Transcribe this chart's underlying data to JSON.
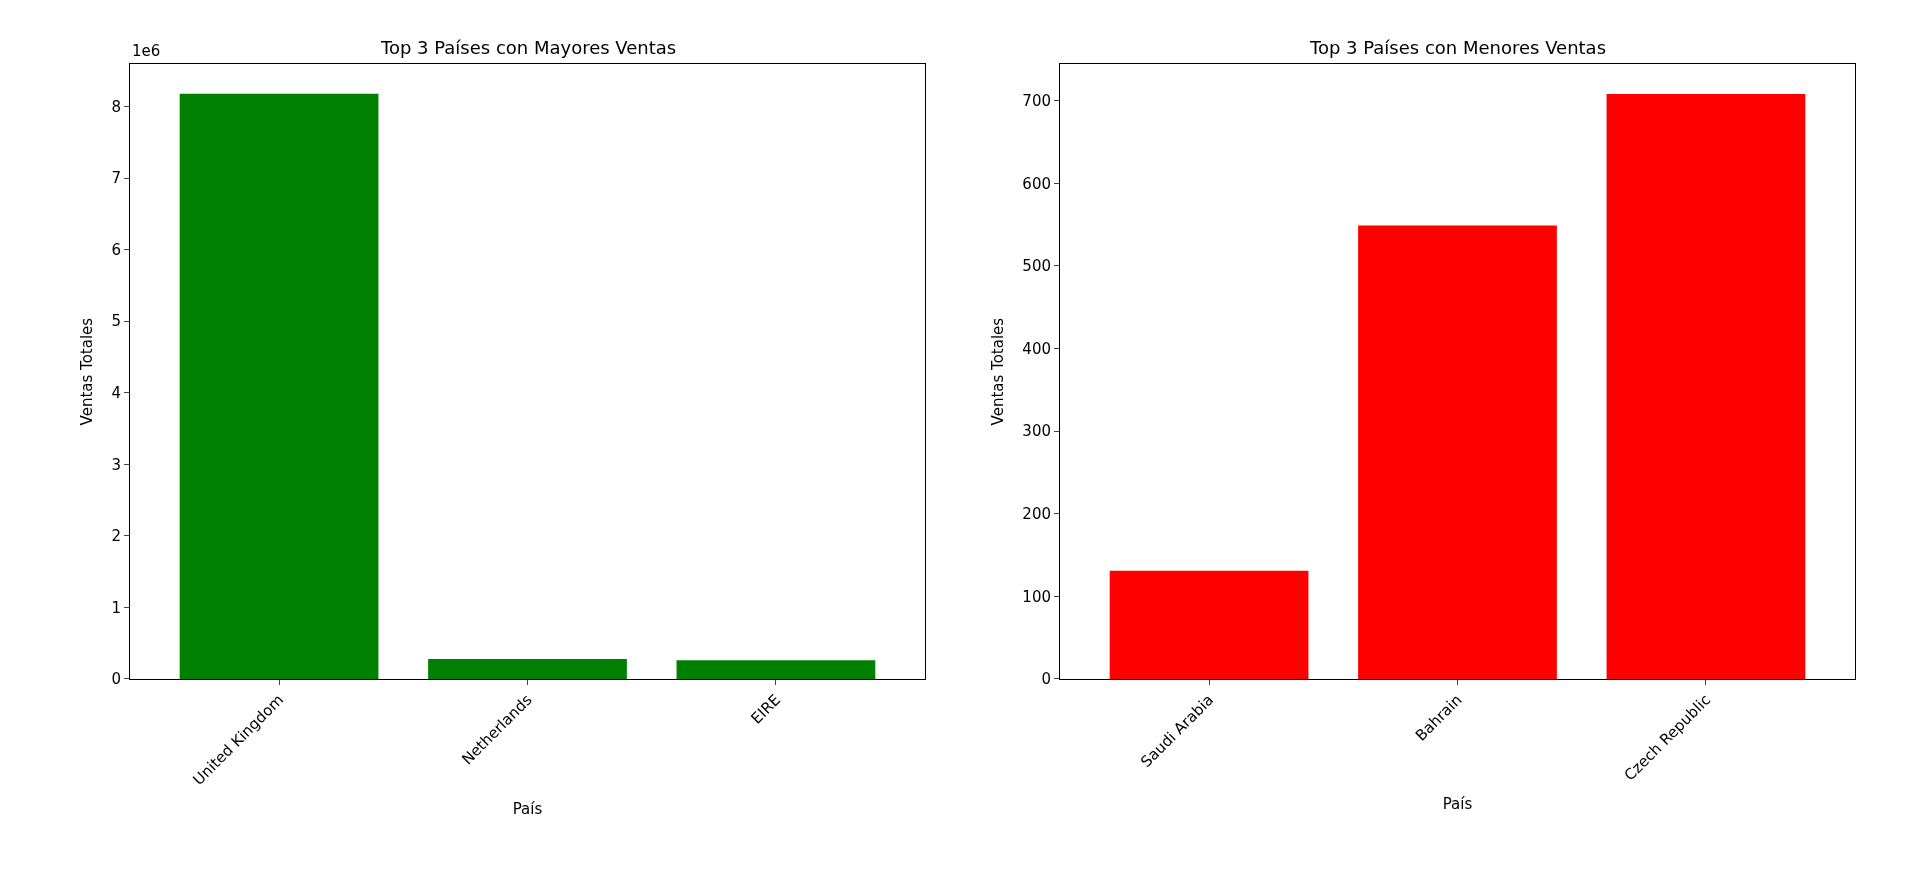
{
  "chart_data": [
    {
      "type": "bar",
      "title": "Top 3 Países con Mayores Ventas",
      "xlabel": "País",
      "ylabel": "Ventas Totales",
      "categories": [
        "United Kingdom",
        "Netherlands",
        "EIRE"
      ],
      "values": [
        8.18,
        0.28,
        0.26
      ],
      "color": "#008000",
      "ylim": [
        0,
        8.59
      ],
      "yticks": [
        0,
        1,
        2,
        3,
        4,
        5,
        6,
        7,
        8
      ],
      "annotations": [
        "1e6"
      ]
    },
    {
      "type": "bar",
      "title": "Top 3 Países con Menores Ventas",
      "xlabel": "País",
      "ylabel": "Ventas Totales",
      "categories": [
        "Saudi Arabia",
        "Bahrain",
        "Czech Republic"
      ],
      "values": [
        131,
        549,
        708
      ],
      "color": "#ff0000",
      "ylim": [
        0,
        744
      ],
      "yticks": [
        0,
        100,
        200,
        300,
        400,
        500,
        600,
        700
      ]
    }
  ]
}
